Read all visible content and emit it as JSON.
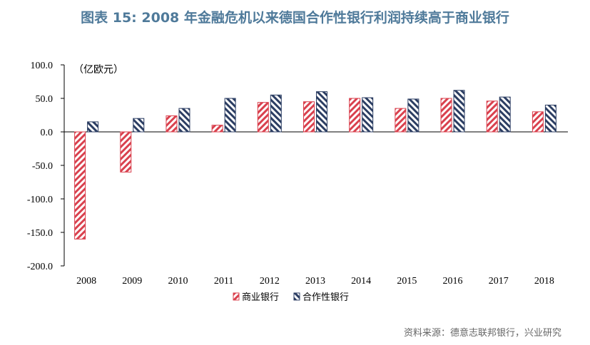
{
  "title": "图表 15: 2008 年金融危机以来德国合作性银行利润持续高于商业银行",
  "source": "资料来源：德意志联邦银行，兴业研究",
  "colors": {
    "commercial": "#d9414e",
    "cooperative": "#2c3e63",
    "title": "#4f7a9a"
  },
  "chart_data": {
    "type": "bar",
    "unit_label": "（亿欧元）",
    "categories": [
      "2008",
      "2009",
      "2010",
      "2011",
      "2012",
      "2013",
      "2014",
      "2015",
      "2016",
      "2017",
      "2018"
    ],
    "series": [
      {
        "name": "商业银行",
        "values": [
          -160,
          -60,
          24,
          10,
          44,
          45,
          50,
          35,
          50,
          46,
          30
        ]
      },
      {
        "name": "合作性银行",
        "values": [
          15,
          20,
          35,
          50,
          55,
          60,
          51,
          49,
          62,
          52,
          40
        ]
      }
    ],
    "ylim": [
      -200,
      100
    ],
    "yticks": [
      "100.0",
      "50.0",
      "0.0",
      "-50.0",
      "-100.0",
      "-150.0",
      "-200.0"
    ],
    "grid": false,
    "legend_position": "bottom"
  }
}
